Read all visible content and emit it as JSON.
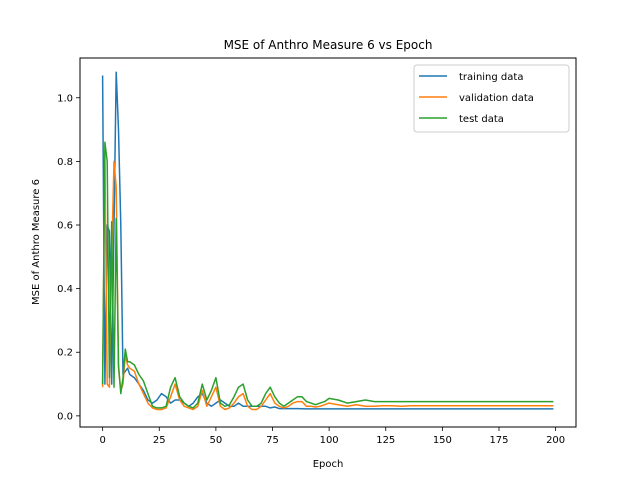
{
  "chart_data": {
    "type": "line",
    "title": "MSE of Anthro Measure 6 vs Epoch",
    "xlabel": "Epoch",
    "ylabel": "MSE of Anthro Measure 6",
    "xlim": [
      -10,
      209
    ],
    "ylim": [
      -0.035,
      1.125
    ],
    "xticks": [
      0,
      25,
      50,
      75,
      100,
      125,
      150,
      175,
      200
    ],
    "yticks": [
      0.0,
      0.2,
      0.4,
      0.6,
      0.8,
      1.0
    ],
    "ytick_labels": [
      "0.0",
      "0.2",
      "0.4",
      "0.6",
      "0.8",
      "1.0"
    ],
    "grid": false,
    "legend_position": "top-right",
    "series": [
      {
        "name": "training data",
        "color": "#1f77b4",
        "points": [
          [
            0,
            1.07
          ],
          [
            1,
            0.1
          ],
          [
            2,
            0.6
          ],
          [
            3,
            0.58
          ],
          [
            4,
            0.1
          ],
          [
            5,
            0.6
          ],
          [
            6,
            1.08
          ],
          [
            7,
            0.9
          ],
          [
            8,
            0.6
          ],
          [
            9,
            0.13
          ],
          [
            10,
            0.14
          ],
          [
            11,
            0.15
          ],
          [
            12,
            0.13
          ],
          [
            14,
            0.12
          ],
          [
            16,
            0.1
          ],
          [
            18,
            0.08
          ],
          [
            20,
            0.05
          ],
          [
            22,
            0.04
          ],
          [
            24,
            0.05
          ],
          [
            26,
            0.07
          ],
          [
            28,
            0.06
          ],
          [
            30,
            0.04
          ],
          [
            32,
            0.05
          ],
          [
            34,
            0.05
          ],
          [
            36,
            0.04
          ],
          [
            38,
            0.03
          ],
          [
            40,
            0.04
          ],
          [
            42,
            0.06
          ],
          [
            44,
            0.07
          ],
          [
            46,
            0.04
          ],
          [
            48,
            0.03
          ],
          [
            50,
            0.04
          ],
          [
            52,
            0.05
          ],
          [
            54,
            0.04
          ],
          [
            56,
            0.03
          ],
          [
            58,
            0.03
          ],
          [
            60,
            0.04
          ],
          [
            62,
            0.03
          ],
          [
            64,
            0.03
          ],
          [
            66,
            0.03
          ],
          [
            70,
            0.03
          ],
          [
            72,
            0.03
          ],
          [
            74,
            0.025
          ],
          [
            76,
            0.028
          ],
          [
            78,
            0.023
          ],
          [
            82,
            0.023
          ],
          [
            86,
            0.023
          ],
          [
            90,
            0.022
          ],
          [
            95,
            0.022
          ],
          [
            100,
            0.022
          ],
          [
            110,
            0.022
          ],
          [
            120,
            0.022
          ],
          [
            130,
            0.022
          ],
          [
            140,
            0.022
          ],
          [
            150,
            0.022
          ],
          [
            160,
            0.022
          ],
          [
            170,
            0.022
          ],
          [
            180,
            0.022
          ],
          [
            190,
            0.022
          ],
          [
            199,
            0.022
          ]
        ]
      },
      {
        "name": "validation data",
        "color": "#ff7f0e",
        "points": [
          [
            0,
            0.09
          ],
          [
            1,
            0.82
          ],
          [
            2,
            0.1
          ],
          [
            3,
            0.09
          ],
          [
            4,
            0.5
          ],
          [
            5,
            0.8
          ],
          [
            6,
            0.72
          ],
          [
            7,
            0.15
          ],
          [
            8,
            0.08
          ],
          [
            9,
            0.1
          ],
          [
            10,
            0.19
          ],
          [
            11,
            0.16
          ],
          [
            12,
            0.15
          ],
          [
            14,
            0.14
          ],
          [
            16,
            0.1
          ],
          [
            18,
            0.07
          ],
          [
            20,
            0.04
          ],
          [
            22,
            0.025
          ],
          [
            24,
            0.02
          ],
          [
            26,
            0.02
          ],
          [
            28,
            0.025
          ],
          [
            30,
            0.06
          ],
          [
            32,
            0.1
          ],
          [
            34,
            0.05
          ],
          [
            36,
            0.03
          ],
          [
            38,
            0.025
          ],
          [
            40,
            0.02
          ],
          [
            42,
            0.03
          ],
          [
            44,
            0.08
          ],
          [
            46,
            0.03
          ],
          [
            48,
            0.06
          ],
          [
            50,
            0.09
          ],
          [
            52,
            0.03
          ],
          [
            54,
            0.02
          ],
          [
            56,
            0.025
          ],
          [
            58,
            0.04
          ],
          [
            60,
            0.06
          ],
          [
            62,
            0.07
          ],
          [
            64,
            0.03
          ],
          [
            66,
            0.02
          ],
          [
            68,
            0.02
          ],
          [
            70,
            0.03
          ],
          [
            72,
            0.05
          ],
          [
            74,
            0.07
          ],
          [
            76,
            0.04
          ],
          [
            78,
            0.03
          ],
          [
            80,
            0.025
          ],
          [
            82,
            0.03
          ],
          [
            84,
            0.04
          ],
          [
            86,
            0.045
          ],
          [
            88,
            0.045
          ],
          [
            90,
            0.03
          ],
          [
            92,
            0.03
          ],
          [
            94,
            0.028
          ],
          [
            96,
            0.03
          ],
          [
            98,
            0.035
          ],
          [
            100,
            0.04
          ],
          [
            104,
            0.035
          ],
          [
            108,
            0.03
          ],
          [
            112,
            0.035
          ],
          [
            116,
            0.03
          ],
          [
            120,
            0.03
          ],
          [
            124,
            0.032
          ],
          [
            128,
            0.032
          ],
          [
            132,
            0.03
          ],
          [
            136,
            0.032
          ],
          [
            140,
            0.032
          ],
          [
            150,
            0.032
          ],
          [
            160,
            0.032
          ],
          [
            170,
            0.032
          ],
          [
            180,
            0.032
          ],
          [
            190,
            0.032
          ],
          [
            199,
            0.032
          ]
        ]
      },
      {
        "name": "test data",
        "color": "#2ca02c",
        "points": [
          [
            0,
            0.1
          ],
          [
            1,
            0.86
          ],
          [
            2,
            0.8
          ],
          [
            3,
            0.12
          ],
          [
            4,
            0.61
          ],
          [
            5,
            0.09
          ],
          [
            6,
            0.62
          ],
          [
            7,
            0.16
          ],
          [
            8,
            0.07
          ],
          [
            9,
            0.12
          ],
          [
            10,
            0.21
          ],
          [
            11,
            0.17
          ],
          [
            12,
            0.17
          ],
          [
            14,
            0.16
          ],
          [
            16,
            0.13
          ],
          [
            18,
            0.11
          ],
          [
            20,
            0.07
          ],
          [
            22,
            0.03
          ],
          [
            24,
            0.025
          ],
          [
            26,
            0.025
          ],
          [
            28,
            0.03
          ],
          [
            30,
            0.09
          ],
          [
            32,
            0.12
          ],
          [
            34,
            0.06
          ],
          [
            36,
            0.04
          ],
          [
            38,
            0.03
          ],
          [
            40,
            0.025
          ],
          [
            42,
            0.04
          ],
          [
            44,
            0.1
          ],
          [
            46,
            0.05
          ],
          [
            48,
            0.08
          ],
          [
            50,
            0.12
          ],
          [
            52,
            0.04
          ],
          [
            54,
            0.03
          ],
          [
            56,
            0.035
          ],
          [
            58,
            0.06
          ],
          [
            60,
            0.09
          ],
          [
            62,
            0.1
          ],
          [
            64,
            0.05
          ],
          [
            66,
            0.03
          ],
          [
            68,
            0.03
          ],
          [
            70,
            0.04
          ],
          [
            72,
            0.07
          ],
          [
            74,
            0.09
          ],
          [
            76,
            0.06
          ],
          [
            78,
            0.04
          ],
          [
            80,
            0.03
          ],
          [
            82,
            0.04
          ],
          [
            84,
            0.05
          ],
          [
            86,
            0.06
          ],
          [
            88,
            0.06
          ],
          [
            90,
            0.045
          ],
          [
            92,
            0.04
          ],
          [
            94,
            0.035
          ],
          [
            96,
            0.04
          ],
          [
            98,
            0.045
          ],
          [
            100,
            0.055
          ],
          [
            104,
            0.05
          ],
          [
            108,
            0.04
          ],
          [
            112,
            0.045
          ],
          [
            116,
            0.05
          ],
          [
            120,
            0.045
          ],
          [
            124,
            0.045
          ],
          [
            128,
            0.045
          ],
          [
            132,
            0.045
          ],
          [
            136,
            0.045
          ],
          [
            140,
            0.045
          ],
          [
            150,
            0.045
          ],
          [
            160,
            0.045
          ],
          [
            170,
            0.045
          ],
          [
            180,
            0.045
          ],
          [
            190,
            0.045
          ],
          [
            199,
            0.045
          ]
        ]
      }
    ]
  }
}
